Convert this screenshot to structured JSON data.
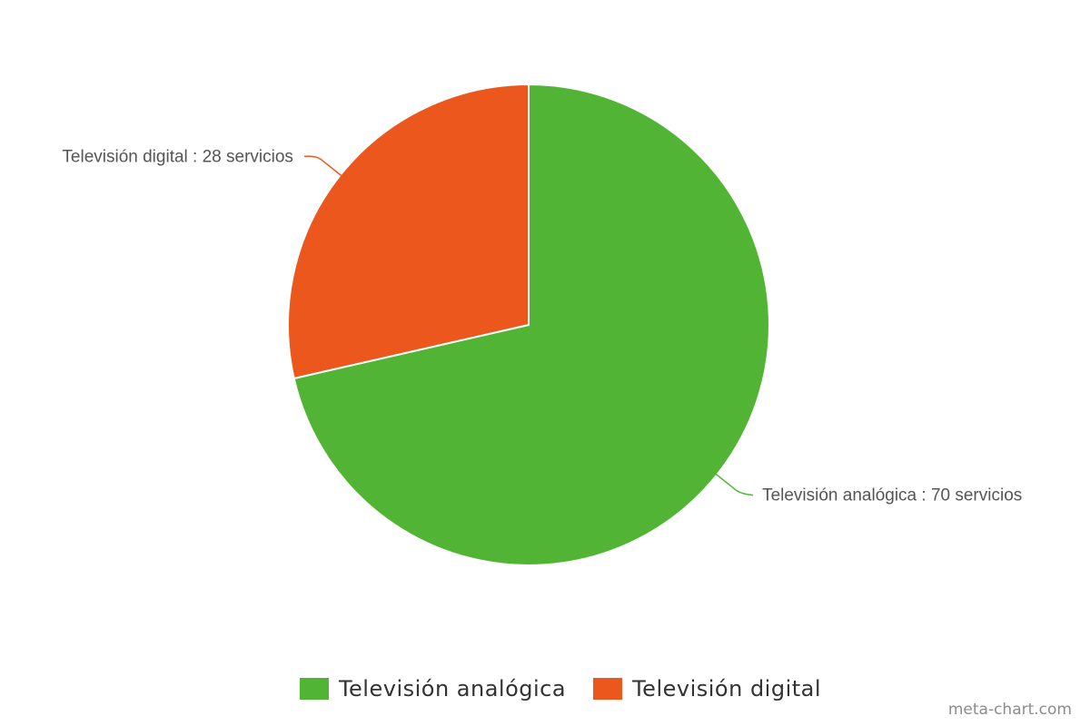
{
  "chart_data": {
    "type": "pie",
    "title": "",
    "start_angle_deg": 0,
    "direction": "clockwise",
    "slices": [
      {
        "name": "Televisión analógica",
        "value": 70,
        "label": "Televisión analógica : 70 servicios",
        "color": "#52b434"
      },
      {
        "name": "Televisión digital",
        "value": 28,
        "label": "Televisión digital : 28 servicios",
        "color": "#eb571c"
      }
    ],
    "legend_position": "bottom"
  },
  "watermark": "meta-chart.com"
}
